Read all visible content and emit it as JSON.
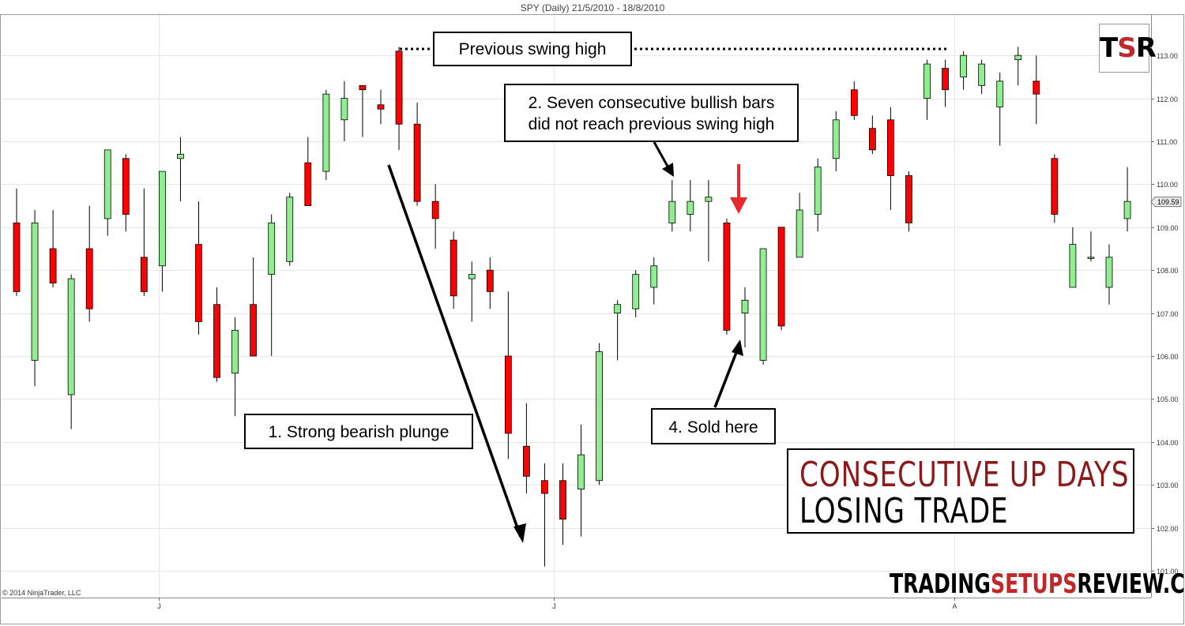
{
  "chart_title": "SPY (Daily)  21/5/2010 - 18/8/2010",
  "copyright": "© 2014 NinjaTrader, LLC",
  "logo": {
    "t": "T",
    "s": "S",
    "r": "R"
  },
  "site": {
    "part1": "TRADING",
    "part2": "SETUPS",
    "part3": "REVIEW.COM"
  },
  "title": {
    "line1": "CONSECUTIVE UP DAYS",
    "line2": "LOSING TRADE"
  },
  "annotations": {
    "swing_high": "Previous swing high",
    "seven_bars_line1": "2. Seven consecutive bullish bars",
    "seven_bars_line2": "did not reach previous swing high",
    "plunge": "1. Strong bearish plunge",
    "sold": "4. Sold here"
  },
  "colors": {
    "bull": "#90ee90",
    "bear": "#ff0000",
    "red_arrow": "#e8292b",
    "title_red": "#8b1a1a",
    "grid": "#e6e6e6"
  },
  "chart_data": {
    "type": "candlestick",
    "title": "SPY (Daily)  21/5/2010 - 18/8/2010",
    "ylim": [
      100.7,
      113.7
    ],
    "yticks": [
      101,
      102,
      103,
      104,
      105,
      106,
      107,
      108,
      109,
      110,
      111,
      112,
      113
    ],
    "ytick_labels": [
      "101.00",
      "102.00",
      "103.00",
      "104.00",
      "105.00",
      "106.00",
      "107.00",
      "108.00",
      "109.00",
      "110.00",
      "111.00",
      "112.00",
      "113.00"
    ],
    "last_price_label": "109.59",
    "last_price": 109.59,
    "x_month_labels": [
      {
        "label": "J",
        "index": 7.8
      },
      {
        "label": "J",
        "index": 29.5
      },
      {
        "label": "A",
        "index": 51.5
      }
    ],
    "candles": [
      {
        "o": 109.1,
        "h": 109.9,
        "l": 107.4,
        "c": 107.5
      },
      {
        "o": 105.9,
        "h": 109.4,
        "l": 105.3,
        "c": 109.1
      },
      {
        "o": 108.5,
        "h": 109.4,
        "l": 107.6,
        "c": 107.7
      },
      {
        "o": 105.1,
        "h": 107.9,
        "l": 104.3,
        "c": 107.8
      },
      {
        "o": 108.5,
        "h": 109.5,
        "l": 106.8,
        "c": 107.1
      },
      {
        "o": 109.2,
        "h": 110.8,
        "l": 108.8,
        "c": 110.8
      },
      {
        "o": 110.6,
        "h": 110.7,
        "l": 108.9,
        "c": 109.3
      },
      {
        "o": 108.3,
        "h": 109.9,
        "l": 107.4,
        "c": 107.5
      },
      {
        "o": 108.1,
        "h": 110.3,
        "l": 107.5,
        "c": 110.3
      },
      {
        "o": 110.6,
        "h": 111.1,
        "l": 109.6,
        "c": 110.7
      },
      {
        "o": 108.6,
        "h": 109.6,
        "l": 106.5,
        "c": 106.8
      },
      {
        "o": 107.2,
        "h": 107.6,
        "l": 105.4,
        "c": 105.5
      },
      {
        "o": 105.6,
        "h": 106.9,
        "l": 104.6,
        "c": 106.6
      },
      {
        "o": 107.2,
        "h": 108.3,
        "l": 106.0,
        "c": 106.0
      },
      {
        "o": 107.9,
        "h": 109.3,
        "l": 106.0,
        "c": 109.1
      },
      {
        "o": 108.2,
        "h": 109.8,
        "l": 108.1,
        "c": 109.7
      },
      {
        "o": 110.5,
        "h": 111.1,
        "l": 109.5,
        "c": 109.5
      },
      {
        "o": 110.3,
        "h": 112.2,
        "l": 110.1,
        "c": 112.1
      },
      {
        "o": 111.5,
        "h": 112.4,
        "l": 111.0,
        "c": 112.0
      },
      {
        "o": 112.3,
        "h": 112.3,
        "l": 111.1,
        "c": 112.2
      },
      {
        "o": 111.85,
        "h": 112.2,
        "l": 111.4,
        "c": 111.75
      },
      {
        "o": 113.1,
        "h": 113.2,
        "l": 110.8,
        "c": 111.4
      },
      {
        "o": 111.4,
        "h": 111.9,
        "l": 109.5,
        "c": 109.6
      },
      {
        "o": 109.6,
        "h": 110.0,
        "l": 108.5,
        "c": 109.2
      },
      {
        "o": 108.7,
        "h": 108.9,
        "l": 107.1,
        "c": 107.4
      },
      {
        "o": 107.8,
        "h": 108.2,
        "l": 106.8,
        "c": 107.9
      },
      {
        "o": 108.0,
        "h": 108.3,
        "l": 107.1,
        "c": 107.5
      },
      {
        "o": 106.0,
        "h": 107.5,
        "l": 103.6,
        "c": 104.2
      },
      {
        "o": 103.9,
        "h": 104.9,
        "l": 102.8,
        "c": 103.2
      },
      {
        "o": 103.1,
        "h": 103.5,
        "l": 101.1,
        "c": 102.8
      },
      {
        "o": 103.1,
        "h": 103.5,
        "l": 101.6,
        "c": 102.2
      },
      {
        "o": 102.9,
        "h": 104.4,
        "l": 101.8,
        "c": 103.7
      },
      {
        "o": 103.1,
        "h": 106.3,
        "l": 103.0,
        "c": 106.1
      },
      {
        "o": 107.0,
        "h": 107.3,
        "l": 105.9,
        "c": 107.2
      },
      {
        "o": 107.1,
        "h": 108.0,
        "l": 106.9,
        "c": 107.9
      },
      {
        "o": 107.6,
        "h": 108.3,
        "l": 107.2,
        "c": 108.1
      },
      {
        "o": 109.1,
        "h": 110.1,
        "l": 108.9,
        "c": 109.6
      },
      {
        "o": 109.3,
        "h": 110.1,
        "l": 108.9,
        "c": 109.6
      },
      {
        "o": 109.6,
        "h": 110.1,
        "l": 108.2,
        "c": 109.7
      },
      {
        "o": 109.1,
        "h": 109.2,
        "l": 106.5,
        "c": 106.6
      },
      {
        "o": 107.0,
        "h": 107.6,
        "l": 106.2,
        "c": 107.3
      },
      {
        "o": 105.9,
        "h": 108.5,
        "l": 105.8,
        "c": 108.5
      },
      {
        "o": 109.0,
        "h": 109.0,
        "l": 106.6,
        "c": 106.7
      },
      {
        "o": 108.3,
        "h": 109.8,
        "l": 108.3,
        "c": 109.4
      },
      {
        "o": 109.3,
        "h": 110.6,
        "l": 108.9,
        "c": 110.4
      },
      {
        "o": 110.6,
        "h": 111.7,
        "l": 110.3,
        "c": 111.5
      },
      {
        "o": 112.2,
        "h": 112.4,
        "l": 111.5,
        "c": 111.6
      },
      {
        "o": 111.3,
        "h": 111.6,
        "l": 110.7,
        "c": 110.8
      },
      {
        "o": 111.5,
        "h": 111.8,
        "l": 109.4,
        "c": 110.2
      },
      {
        "o": 110.2,
        "h": 110.3,
        "l": 108.9,
        "c": 109.1
      },
      {
        "o": 112.0,
        "h": 112.9,
        "l": 111.5,
        "c": 112.8
      },
      {
        "o": 112.7,
        "h": 112.9,
        "l": 111.8,
        "c": 112.2
      },
      {
        "o": 112.5,
        "h": 113.1,
        "l": 112.2,
        "c": 113.0
      },
      {
        "o": 112.3,
        "h": 112.9,
        "l": 112.1,
        "c": 112.8
      },
      {
        "o": 111.8,
        "h": 112.6,
        "l": 110.9,
        "c": 112.4
      },
      {
        "o": 112.9,
        "h": 113.2,
        "l": 112.3,
        "c": 113.0
      },
      {
        "o": 112.4,
        "h": 113.0,
        "l": 111.4,
        "c": 112.1
      },
      {
        "o": 110.6,
        "h": 110.7,
        "l": 109.1,
        "c": 109.3
      },
      {
        "o": 107.6,
        "h": 109.0,
        "l": 107.6,
        "c": 108.6
      },
      {
        "o": 108.3,
        "h": 108.9,
        "l": 108.2,
        "c": 108.3
      },
      {
        "o": 107.6,
        "h": 108.6,
        "l": 107.2,
        "c": 108.3
      },
      {
        "o": 109.2,
        "h": 110.4,
        "l": 108.9,
        "c": 109.6
      }
    ]
  }
}
